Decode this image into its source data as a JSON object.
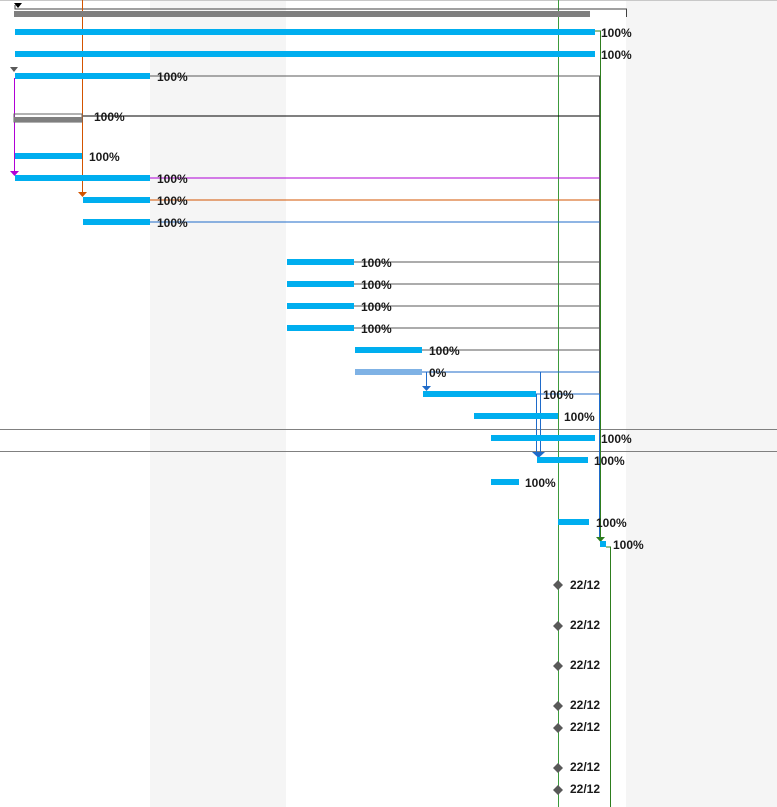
{
  "colors": {
    "task": "#00aeef",
    "task_notstarted": "#7fb2e5",
    "summary": "#7f7f7f",
    "weekend_band": "#f5f5f5",
    "milestone": "#595959",
    "today_line": "#3c9a3c",
    "link_default": "#595959",
    "link_purple": "#b000d6",
    "link_orange": "#d35400",
    "link_blue": "#1f6bc9",
    "link_green": "#2e7d1e",
    "row_divider": "#808080"
  },
  "icons": {
    "link_arrow": "triangle-down-icon",
    "milestone": "diamond-icon"
  },
  "tasks": [
    {
      "id": "summary-1",
      "type": "summary",
      "label": ""
    },
    {
      "id": "t1",
      "type": "task",
      "label": "100%"
    },
    {
      "id": "t2",
      "type": "task",
      "label": "100%"
    },
    {
      "id": "t3",
      "type": "task",
      "label": "100%"
    },
    {
      "id": "summary-2",
      "type": "summary",
      "label": "100%"
    },
    {
      "id": "t4",
      "type": "task",
      "label": "100%"
    },
    {
      "id": "t5",
      "type": "task",
      "label": "100%"
    },
    {
      "id": "t6",
      "type": "task",
      "label": "100%"
    },
    {
      "id": "t7",
      "type": "task",
      "label": "100%"
    },
    {
      "id": "t8",
      "type": "task",
      "label": "100%"
    },
    {
      "id": "t9",
      "type": "task",
      "label": "100%"
    },
    {
      "id": "t10",
      "type": "task",
      "label": "100%"
    },
    {
      "id": "t11",
      "type": "task",
      "label": "100%"
    },
    {
      "id": "t12",
      "type": "task",
      "label": "100%"
    },
    {
      "id": "t13",
      "type": "task",
      "label": "0%"
    },
    {
      "id": "t14",
      "type": "task",
      "label": "100%"
    },
    {
      "id": "t15",
      "type": "task",
      "label": "100%"
    },
    {
      "id": "t16",
      "type": "task",
      "label": "100%"
    },
    {
      "id": "t17",
      "type": "task",
      "label": "100%"
    },
    {
      "id": "t18",
      "type": "task",
      "label": "100%"
    },
    {
      "id": "t19",
      "type": "task",
      "label": "100%"
    },
    {
      "id": "t20",
      "type": "task",
      "label": "100%"
    },
    {
      "id": "m1",
      "type": "milestone",
      "label": "22/12"
    },
    {
      "id": "m2",
      "type": "milestone",
      "label": "22/12"
    },
    {
      "id": "m3",
      "type": "milestone",
      "label": "22/12"
    },
    {
      "id": "m4",
      "type": "milestone",
      "label": "22/12"
    },
    {
      "id": "m5",
      "type": "milestone",
      "label": "22/12"
    },
    {
      "id": "m6",
      "type": "milestone",
      "label": "22/12"
    },
    {
      "id": "m7",
      "type": "milestone",
      "label": "22/12"
    }
  ]
}
